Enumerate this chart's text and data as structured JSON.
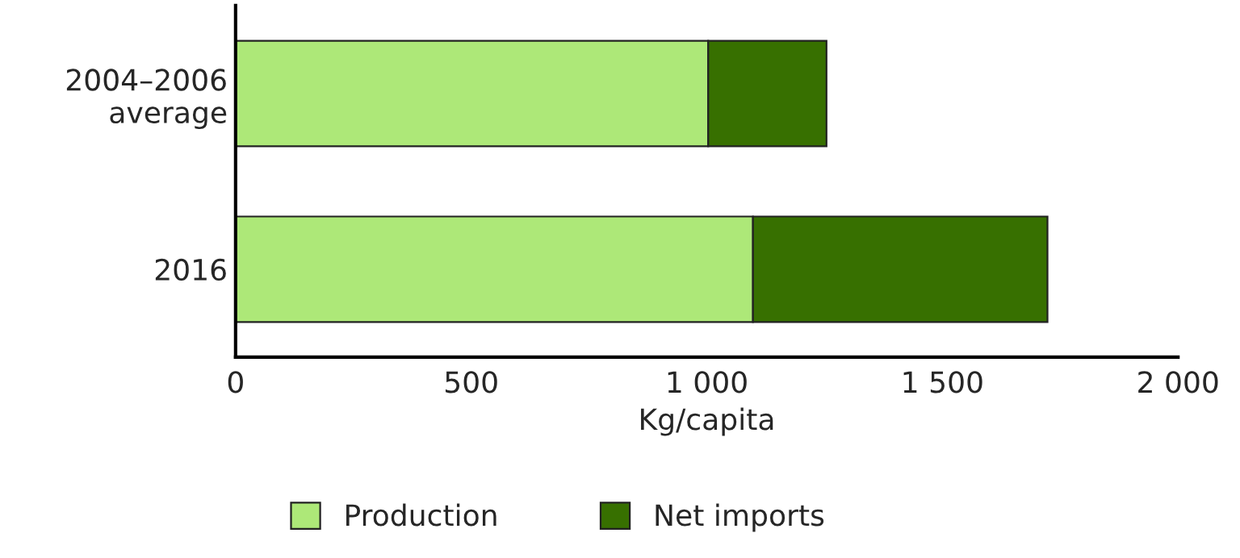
{
  "chart_data": {
    "type": "bar",
    "orientation": "horizontal",
    "stacked": true,
    "categories": [
      "2004–2006\naverage",
      "2016"
    ],
    "series": [
      {
        "name": "Production",
        "color": "#ade878",
        "values": [
          1003,
          1098
        ]
      },
      {
        "name": "Net imports",
        "color": "#377000",
        "values": [
          251,
          625
        ]
      }
    ],
    "xlabel": "Kg/capita",
    "xlim": [
      0,
      2000
    ],
    "xticks": [
      0,
      {
        "value": 500,
        "label": "500"
      },
      {
        "value": 1000,
        "label": "1 000"
      },
      {
        "value": 1500,
        "label": "1 500"
      },
      {
        "value": 2000,
        "label": "2 000"
      }
    ],
    "grid": false,
    "legend": "bottom"
  }
}
